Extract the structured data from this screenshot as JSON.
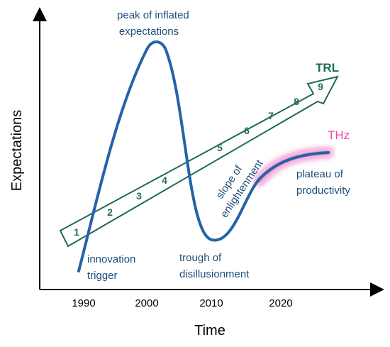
{
  "axes": {
    "x_title": "Time",
    "y_title": "Expectations",
    "x_ticks": [
      "1990",
      "2000",
      "2010",
      "2020"
    ]
  },
  "labels": {
    "peak": [
      "peak of inflated",
      "expectations"
    ],
    "trigger": [
      "innovation",
      "trigger"
    ],
    "trough": [
      "trough of",
      "disillusionment"
    ],
    "slope": [
      "slope of",
      "enlightenment"
    ],
    "plateau": [
      "plateau of",
      "productivity"
    ],
    "trl": "TRL",
    "thz": "THz"
  },
  "trl_levels": [
    "1",
    "2",
    "3",
    "4",
    "5",
    "6",
    "7",
    "8",
    "9"
  ],
  "colors": {
    "curve": "#2463a6",
    "label_text": "#1f4e79",
    "arrow": "#1e6b52",
    "thz": "#ec4aa8",
    "axis": "#000000"
  }
}
